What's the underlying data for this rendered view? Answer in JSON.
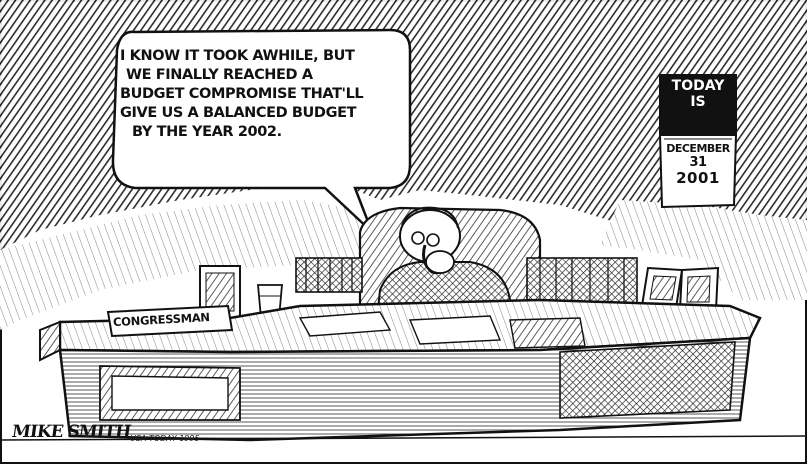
{
  "speech_bubble": {
    "lines": [
      "I KNOW IT TOOK AWHILE, BUT",
      "WE FINALLY REACHED A",
      "BUDGET COMPROMISE THAT'LL",
      "GIVE US A BALANCED BUDGET",
      "BY THE YEAR 2002."
    ]
  },
  "calendar": {
    "header_line1": "TODAY",
    "header_line2": "IS",
    "month": "DECEMBER",
    "day": "31",
    "year": "2001"
  },
  "nameplate": {
    "text": "CONGRESSMAN"
  },
  "signature": {
    "artist": "MIKE SMITH",
    "credit": "USA TODAY 1995"
  }
}
